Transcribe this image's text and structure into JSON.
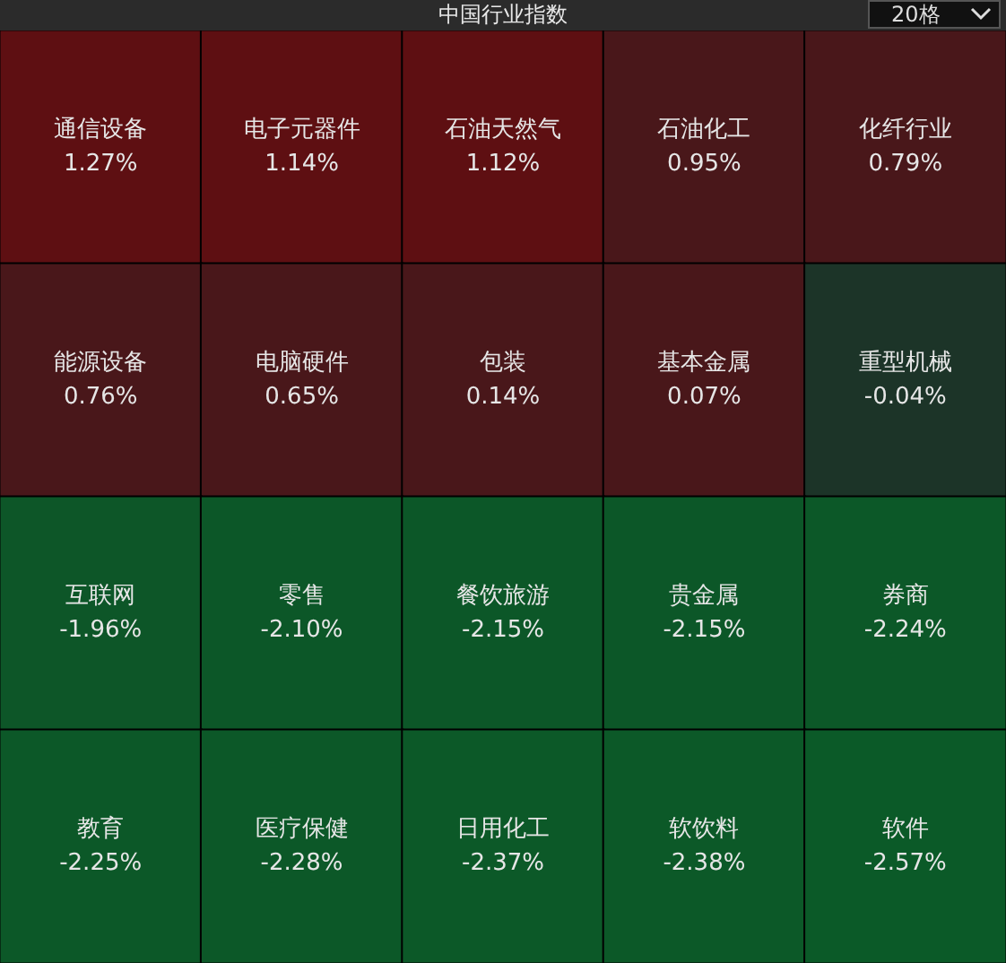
{
  "chart_data": {
    "type": "other",
    "title": "中国行业指数",
    "annotations": [
      "20格"
    ],
    "categories": [
      "通信设备",
      "电子元器件",
      "石油天然气",
      "石油化工",
      "化纤行业",
      "能源设备",
      "电脑硬件",
      "包装",
      "基本金属",
      "重型机械",
      "互联网",
      "零售",
      "餐饮旅游",
      "贵金属",
      "券商",
      "教育",
      "医疗保健",
      "日用化工",
      "软饮料",
      "软件"
    ],
    "values": [
      1.27,
      1.14,
      1.12,
      0.95,
      0.79,
      0.76,
      0.65,
      0.14,
      0.07,
      -0.04,
      -1.96,
      -2.1,
      -2.15,
      -2.15,
      -2.24,
      -2.25,
      -2.28,
      -2.37,
      -2.38,
      -2.57
    ],
    "value_labels": [
      "1.27%",
      "1.14%",
      "1.12%",
      "0.95%",
      "0.79%",
      "0.76%",
      "0.65%",
      "0.14%",
      "0.07%",
      "-0.04%",
      "-1.96%",
      "-2.10%",
      "-2.15%",
      "-2.15%",
      "-2.24%",
      "-2.25%",
      "-2.28%",
      "-2.37%",
      "-2.38%",
      "-2.57%"
    ]
  }
}
